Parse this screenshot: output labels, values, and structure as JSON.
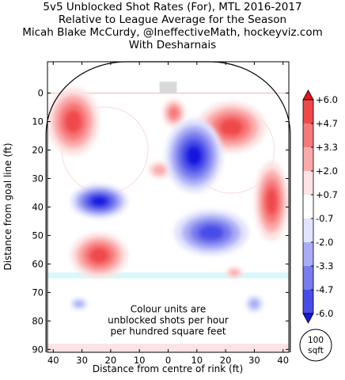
{
  "titles": [
    "5v5 Unblocked Shot Rates (For), MTL 2016-2017",
    "Relative to League Average for the Season",
    "Micah Blake McCurdy, @IneffectiveMath, hockeyviz.com",
    "With Desharnais"
  ],
  "chart_data": {
    "type": "heatmap",
    "xlabel": "Distance from centre of rink (ft)",
    "ylabel": "Distance from goal line (ft)",
    "xlim": [
      42,
      -42
    ],
    "ylim": [
      -11,
      91
    ],
    "x_ticks": [
      "40",
      "30",
      "20",
      "10",
      "0",
      "10",
      "20",
      "30",
      "40"
    ],
    "y_ticks": [
      "0",
      "10",
      "20",
      "30",
      "40",
      "50",
      "60",
      "70",
      "80",
      "90"
    ],
    "annotation": [
      "Colour units are",
      "unblocked shots per hour",
      "per hundred square feet"
    ],
    "scale_badge": [
      "100",
      "sqft"
    ],
    "colorbar": {
      "ticks": [
        "+6.0",
        "+4.7",
        "+3.3",
        "+2.0",
        "+0.7",
        "-0.7",
        "-2.0",
        "-3.3",
        "-4.7",
        "-6.0"
      ],
      "colors": [
        "#e8141e",
        "#f0494c",
        "#f6797a",
        "#fbaaaa",
        "#fde3e3",
        "#ffffff",
        "#e2e3fd",
        "#aaadf6",
        "#797cee",
        "#494de8",
        "#1419e0"
      ]
    },
    "regions": [
      {
        "sign": "+",
        "peak": 4.7,
        "x": -36,
        "y": 38,
        "rx": 6,
        "ry": 14
      },
      {
        "sign": "+",
        "peak": 4.7,
        "x": -22,
        "y": 12,
        "rx": 12,
        "ry": 9
      },
      {
        "sign": "+",
        "peak": 3.3,
        "x": -2,
        "y": 7,
        "rx": 4,
        "ry": 5
      },
      {
        "sign": "+",
        "peak": 4.7,
        "x": 33,
        "y": 10,
        "rx": 9,
        "ry": 12
      },
      {
        "sign": "+",
        "peak": 4.7,
        "x": 24,
        "y": 57,
        "rx": 10,
        "ry": 8
      },
      {
        "sign": "+",
        "peak": 2.0,
        "x": 3,
        "y": 27,
        "rx": 4,
        "ry": 3
      },
      {
        "sign": "+",
        "peak": 2.0,
        "x": -23,
        "y": 63,
        "rx": 3,
        "ry": 2
      },
      {
        "sign": "-",
        "peak": -6.0,
        "x": -9,
        "y": 22,
        "rx": 10,
        "ry": 13
      },
      {
        "sign": "-",
        "peak": -4.7,
        "x": -15,
        "y": 49,
        "rx": 13,
        "ry": 8
      },
      {
        "sign": "-",
        "peak": -6.0,
        "x": 24,
        "y": 38,
        "rx": 10,
        "ry": 6
      },
      {
        "sign": "-",
        "peak": -2.0,
        "x": -30,
        "y": 74,
        "rx": 3,
        "ry": 3
      },
      {
        "sign": "-",
        "peak": -2.0,
        "x": 31,
        "y": 74,
        "rx": 3,
        "ry": 2
      }
    ]
  }
}
